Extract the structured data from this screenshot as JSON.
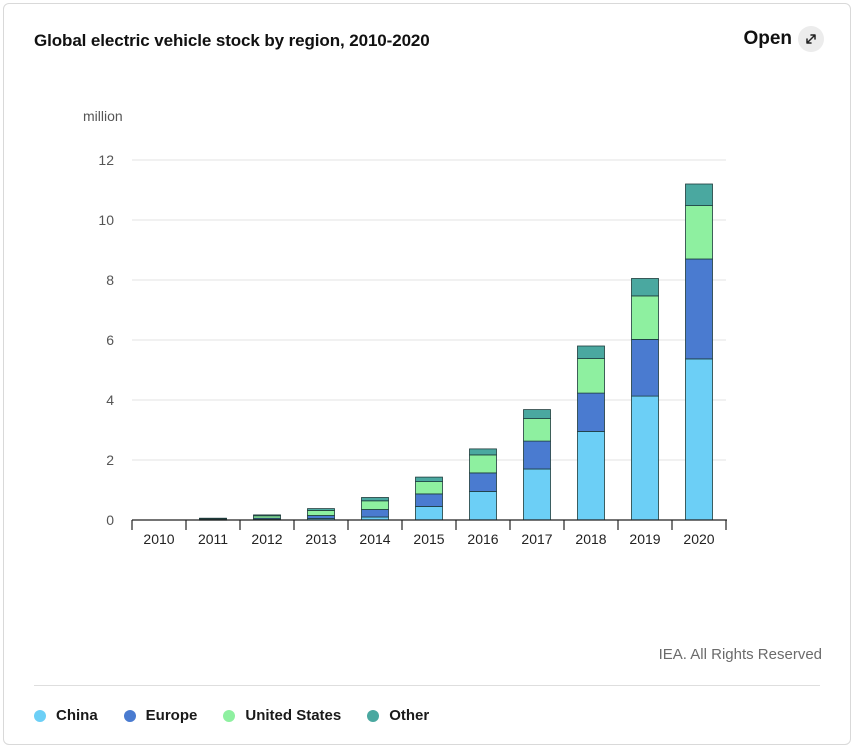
{
  "header": {
    "title": "Global electric vehicle stock by region, 2010-2020",
    "open_label": "Open"
  },
  "credit": "IEA. All Rights Reserved",
  "chart_data": {
    "type": "bar",
    "stacked": true,
    "title": "Global electric vehicle stock by region, 2010-2020",
    "ylabel": "million",
    "xlabel": "",
    "ylim": [
      0,
      12
    ],
    "yticks": [
      0,
      2,
      4,
      6,
      8,
      10,
      12
    ],
    "grid": true,
    "legend": "bottom-left",
    "categories": [
      "2010",
      "2011",
      "2012",
      "2013",
      "2014",
      "2015",
      "2016",
      "2017",
      "2018",
      "2019",
      "2020"
    ],
    "series": [
      {
        "name": "China",
        "color": "#6ccff6",
        "values": [
          0.0,
          0.01,
          0.02,
          0.05,
          0.1,
          0.45,
          0.95,
          1.7,
          2.95,
          4.13,
          5.37
        ]
      },
      {
        "name": "Europe",
        "color": "#4a7bd0",
        "values": [
          0.0,
          0.02,
          0.04,
          0.1,
          0.25,
          0.42,
          0.62,
          0.93,
          1.28,
          1.89,
          3.33
        ]
      },
      {
        "name": "United States",
        "color": "#8ef0a0",
        "values": [
          0.0,
          0.02,
          0.08,
          0.17,
          0.29,
          0.41,
          0.6,
          0.75,
          1.15,
          1.45,
          1.78
        ]
      },
      {
        "name": "Other",
        "color": "#4aa8a0",
        "values": [
          0.0,
          0.01,
          0.03,
          0.06,
          0.11,
          0.15,
          0.2,
          0.3,
          0.42,
          0.58,
          0.72
        ]
      }
    ]
  }
}
